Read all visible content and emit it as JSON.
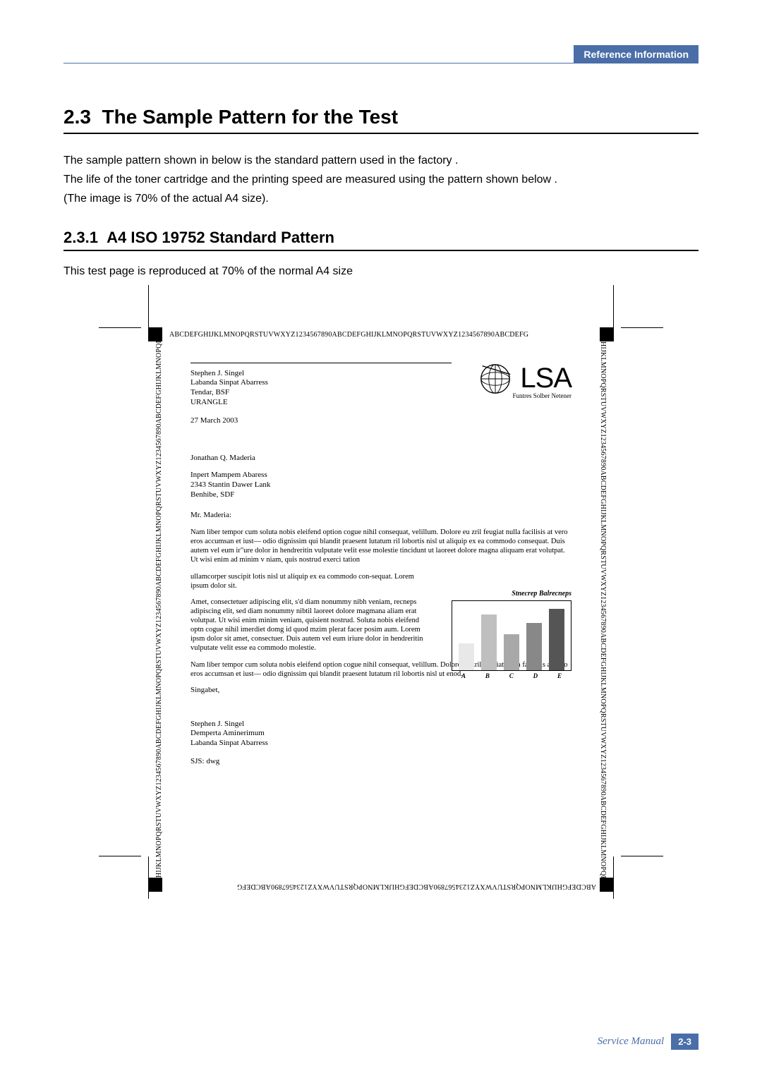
{
  "header": {
    "tab": "Reference Information"
  },
  "section": {
    "number": "2.3",
    "title": "The Sample Pattern for the Test",
    "intro": [
      "The sample pattern shown in below is the standard pattern used in the factory .",
      "The life of the toner cartridge and the printing speed are measured using the pattern shown below .",
      "(The image is 70% of the actual A4 size)."
    ]
  },
  "subsection": {
    "number": "2.3.1",
    "title": "A4 ISO 19752 Standard Pattern",
    "caption": "This test page is reproduced at 70% of the normal A4 size"
  },
  "border_string": "ABCDEFGHIJKLMNOPQRSTUVWXYZ1234567890ABCDEFGHIJKLMNOPQRSTUVWXYZ1234567890ABCDEFG",
  "border_string_side": "HIJKLMNOPQRSTUVWXYZ1234567890ABCDEFGHIJKLMNOPQRSTUVWXYZ1234567890ABCDEFGHIJKLMNOPQRSTUVWXYZ1234567890ABCDEFGHIJKLMNOPQRSTUVWXYZ1234567890",
  "letter": {
    "from": {
      "name": "Stephen J. Singel",
      "org": "Labanda Sinpat Abarress",
      "dept": "Tendar, BSF",
      "country": "URANGLE"
    },
    "date": "27 March 2003",
    "to": {
      "name": "Jonathan Q. Maderia",
      "org": "Inpert Mampem Abaress",
      "street": "2343 Stantin Dawer Lank",
      "city": "Benhibe, SDF"
    },
    "salutation": "Mr. Maderia:",
    "para1": "Nam liber tempor cum soluta nobis eleifend option cogue nihil consequat, velillum. Dolore eu zril feugiat nulla facilisis at vero eros accumsan et iust— odio dignissim qui blandit praesent lutatum ril lobortis nisl ut aliquip ex ea commodo consequat.  Duis autem vel eum ir\"ure dolor in hendreritin vulputate velit esse molestie tincidunt ut laoreet dolore magna aliquam erat volutpat.  Ut wisi enim ad minim v  niam, quis nostrud exerci tation",
    "para1b": "ullamcorper suscipit  lotis nisl ut aliquip ex ea commodo con-sequat. Lorem ipsum dolor sit.",
    "para2": "Amet, consectetuer adipiscing elit, s'd diam nonummy nibh veniam, recneps adipiscing elit, sed diam nonummy nibtil laoreet dolore magmana aliam erat volutpat.  Ut wisi enim minim veniam, quisient nostrud. Soluta nobis eleifend optn cogue nihil imerdiet domg id quod mzim plerat facer posim aum.  Lorem ipsm dolor sit amet, consectuer. Duis autem vel eum iriure dolor in hendreritin vulputate velit esse ea commodo molestie.",
    "para3": "Nam liber tempor cum soluta nobis eleifend option cogue nihil consequat, velillum. Dolore eu zril feugiat nulla facilisis at vero eros accumsan et iust— odio dignissim qui blandit praesent lutatum ril lobortis nisl ut enod.",
    "closing": "Singabet,",
    "sig": {
      "name": "Stephen J. Singel",
      "title": "Demperta Aminerimum",
      "org": "Labanda Sinpat Abarress"
    },
    "initials": "SJS: dwg"
  },
  "logo": {
    "text": "LSA",
    "subtitle": "Funtres Solber Netener"
  },
  "chart": {
    "title": "Stnecrep Balrecneps",
    "categories": [
      "A",
      "B",
      "C",
      "D",
      "E"
    ],
    "values": [
      38,
      80,
      52,
      68,
      88
    ],
    "colors": [
      "#e8e8e8",
      "#bfbfbf",
      "#a8a8a8",
      "#888888",
      "#555555"
    ],
    "ylim": [
      0,
      100
    ],
    "border_color": "#000000"
  },
  "footer": {
    "text": "Service Manual",
    "page": "2-3"
  },
  "colors": {
    "accent": "#4a6ea8",
    "text": "#000000",
    "background": "#ffffff"
  }
}
